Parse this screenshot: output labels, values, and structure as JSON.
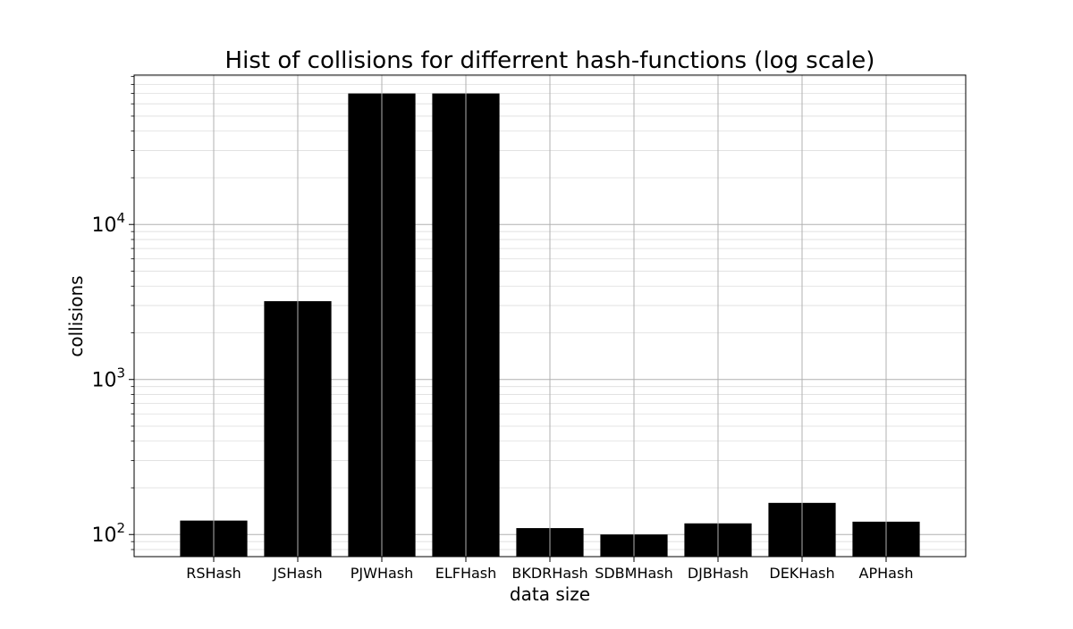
{
  "chart_data": {
    "type": "bar",
    "title": "Hist of collisions for differrent hash-functions (log scale)",
    "xlabel": "data size",
    "ylabel": "collisions",
    "categories": [
      "RSHash",
      "JSHash",
      "PJWHash",
      "ELFHash",
      "BKDRHash",
      "SDBMHash",
      "DJBHash",
      "DEKHash",
      "APHash"
    ],
    "values": [
      123,
      3200,
      70000,
      70000,
      110,
      100,
      118,
      160,
      121
    ],
    "y_scale": "log",
    "ylim": [
      72,
      92000
    ],
    "y_major_ticks": [
      {
        "value": 100,
        "base": "10",
        "exp": "2"
      },
      {
        "value": 1000,
        "base": "10",
        "exp": "3"
      },
      {
        "value": 10000,
        "base": "10",
        "exp": "4"
      }
    ],
    "grid": true,
    "bar_color": "#000000",
    "grid_color": "#b0b0b0",
    "legend": "none"
  }
}
